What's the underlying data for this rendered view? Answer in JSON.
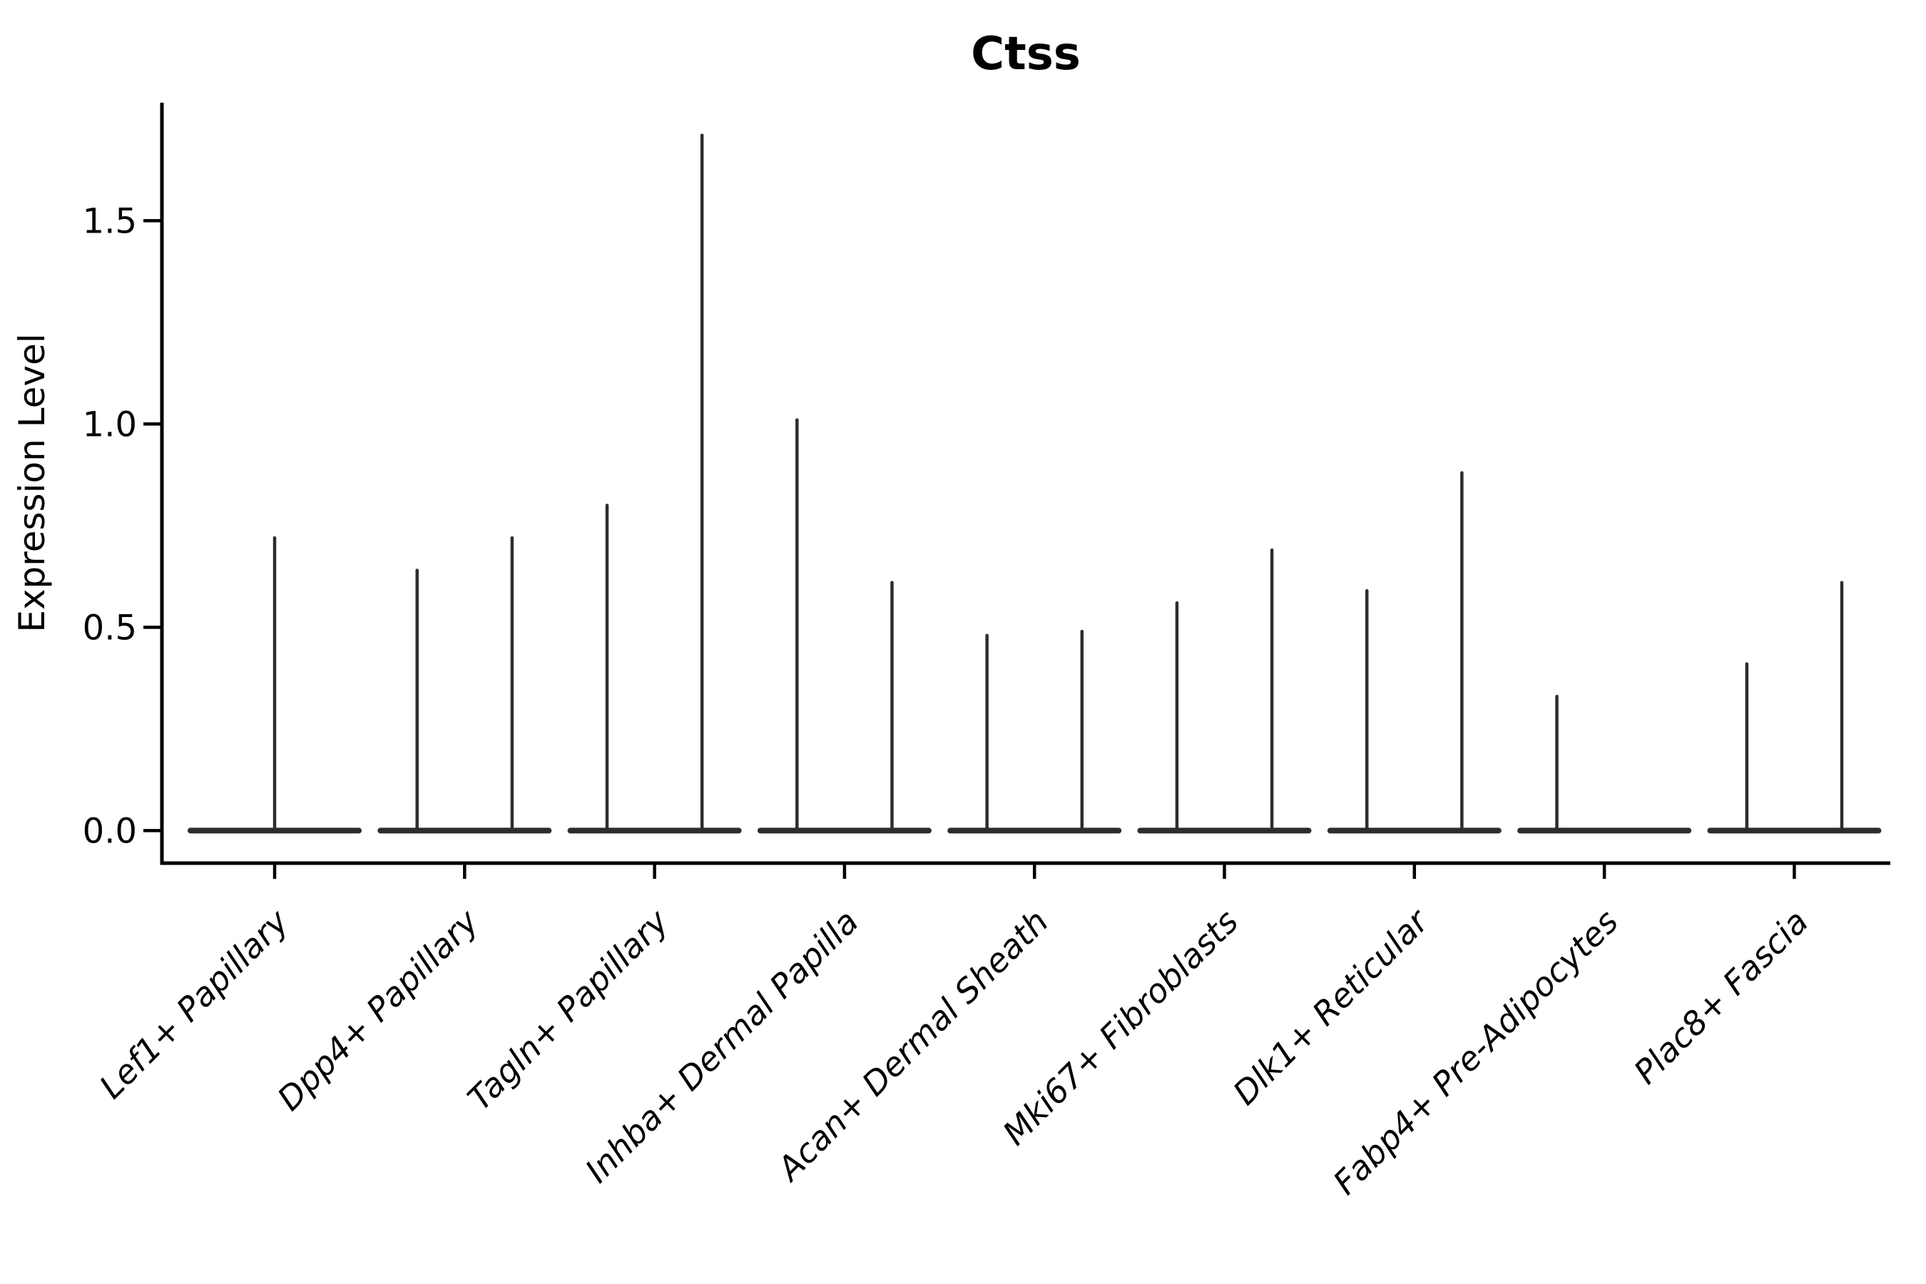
{
  "figure": {
    "title": "Ctss",
    "ylabel": "Expression Level"
  },
  "chart_data": {
    "type": "violin",
    "title": "Ctss",
    "xlabel": "",
    "ylabel": "Expression Level",
    "grid": false,
    "legend": null,
    "ylim": [
      -0.08,
      1.79
    ],
    "yticks": [
      {
        "label": "0.0",
        "value": 0.0
      },
      {
        "label": "0.5",
        "value": 0.5
      },
      {
        "label": "1.0",
        "value": 1.0
      },
      {
        "label": "1.5",
        "value": 1.5
      }
    ],
    "categories": [
      "Lef1+ Papillary",
      "Dpp4+ Papillary",
      "Tagln+ Papillary",
      "Inhba+ Dermal Papilla",
      "Acan+ Dermal Sheath",
      "Mki67+ Fibroblasts",
      "Dlk1+ Reticular",
      "Fabp4+ Pre-Adipocytes",
      "Plac8+ Fascia"
    ],
    "base_value": 0.0,
    "violins": [
      {
        "category": "Lef1+ Papillary",
        "spikes": [
          {
            "offset": 0.0,
            "max": 0.72
          }
        ]
      },
      {
        "category": "Dpp4+ Papillary",
        "spikes": [
          {
            "offset": -0.25,
            "max": 0.64
          },
          {
            "offset": 0.25,
            "max": 0.72
          }
        ]
      },
      {
        "category": "Tagln+ Papillary",
        "spikes": [
          {
            "offset": -0.25,
            "max": 0.8
          },
          {
            "offset": 0.25,
            "max": 1.71
          }
        ]
      },
      {
        "category": "Inhba+ Dermal Papilla",
        "spikes": [
          {
            "offset": -0.25,
            "max": 1.01
          },
          {
            "offset": 0.25,
            "max": 0.61
          }
        ]
      },
      {
        "category": "Acan+ Dermal Sheath",
        "spikes": [
          {
            "offset": -0.25,
            "max": 0.48
          },
          {
            "offset": 0.25,
            "max": 0.49
          }
        ]
      },
      {
        "category": "Mki67+ Fibroblasts",
        "spikes": [
          {
            "offset": -0.25,
            "max": 0.56
          },
          {
            "offset": 0.25,
            "max": 0.69
          }
        ]
      },
      {
        "category": "Dlk1+ Reticular",
        "spikes": [
          {
            "offset": -0.25,
            "max": 0.59
          },
          {
            "offset": 0.25,
            "max": 0.88
          }
        ]
      },
      {
        "category": "Fabp4+ Pre-Adipocytes",
        "spikes": [
          {
            "offset": -0.25,
            "max": 0.33
          }
        ]
      },
      {
        "category": "Plac8+ Fascia",
        "spikes": [
          {
            "offset": -0.25,
            "max": 0.41
          },
          {
            "offset": 0.25,
            "max": 0.61
          }
        ]
      }
    ],
    "colors": {
      "violin_line": "#2d2d2d",
      "axis": "#000000",
      "text": "#000000",
      "background": "#ffffff"
    }
  }
}
